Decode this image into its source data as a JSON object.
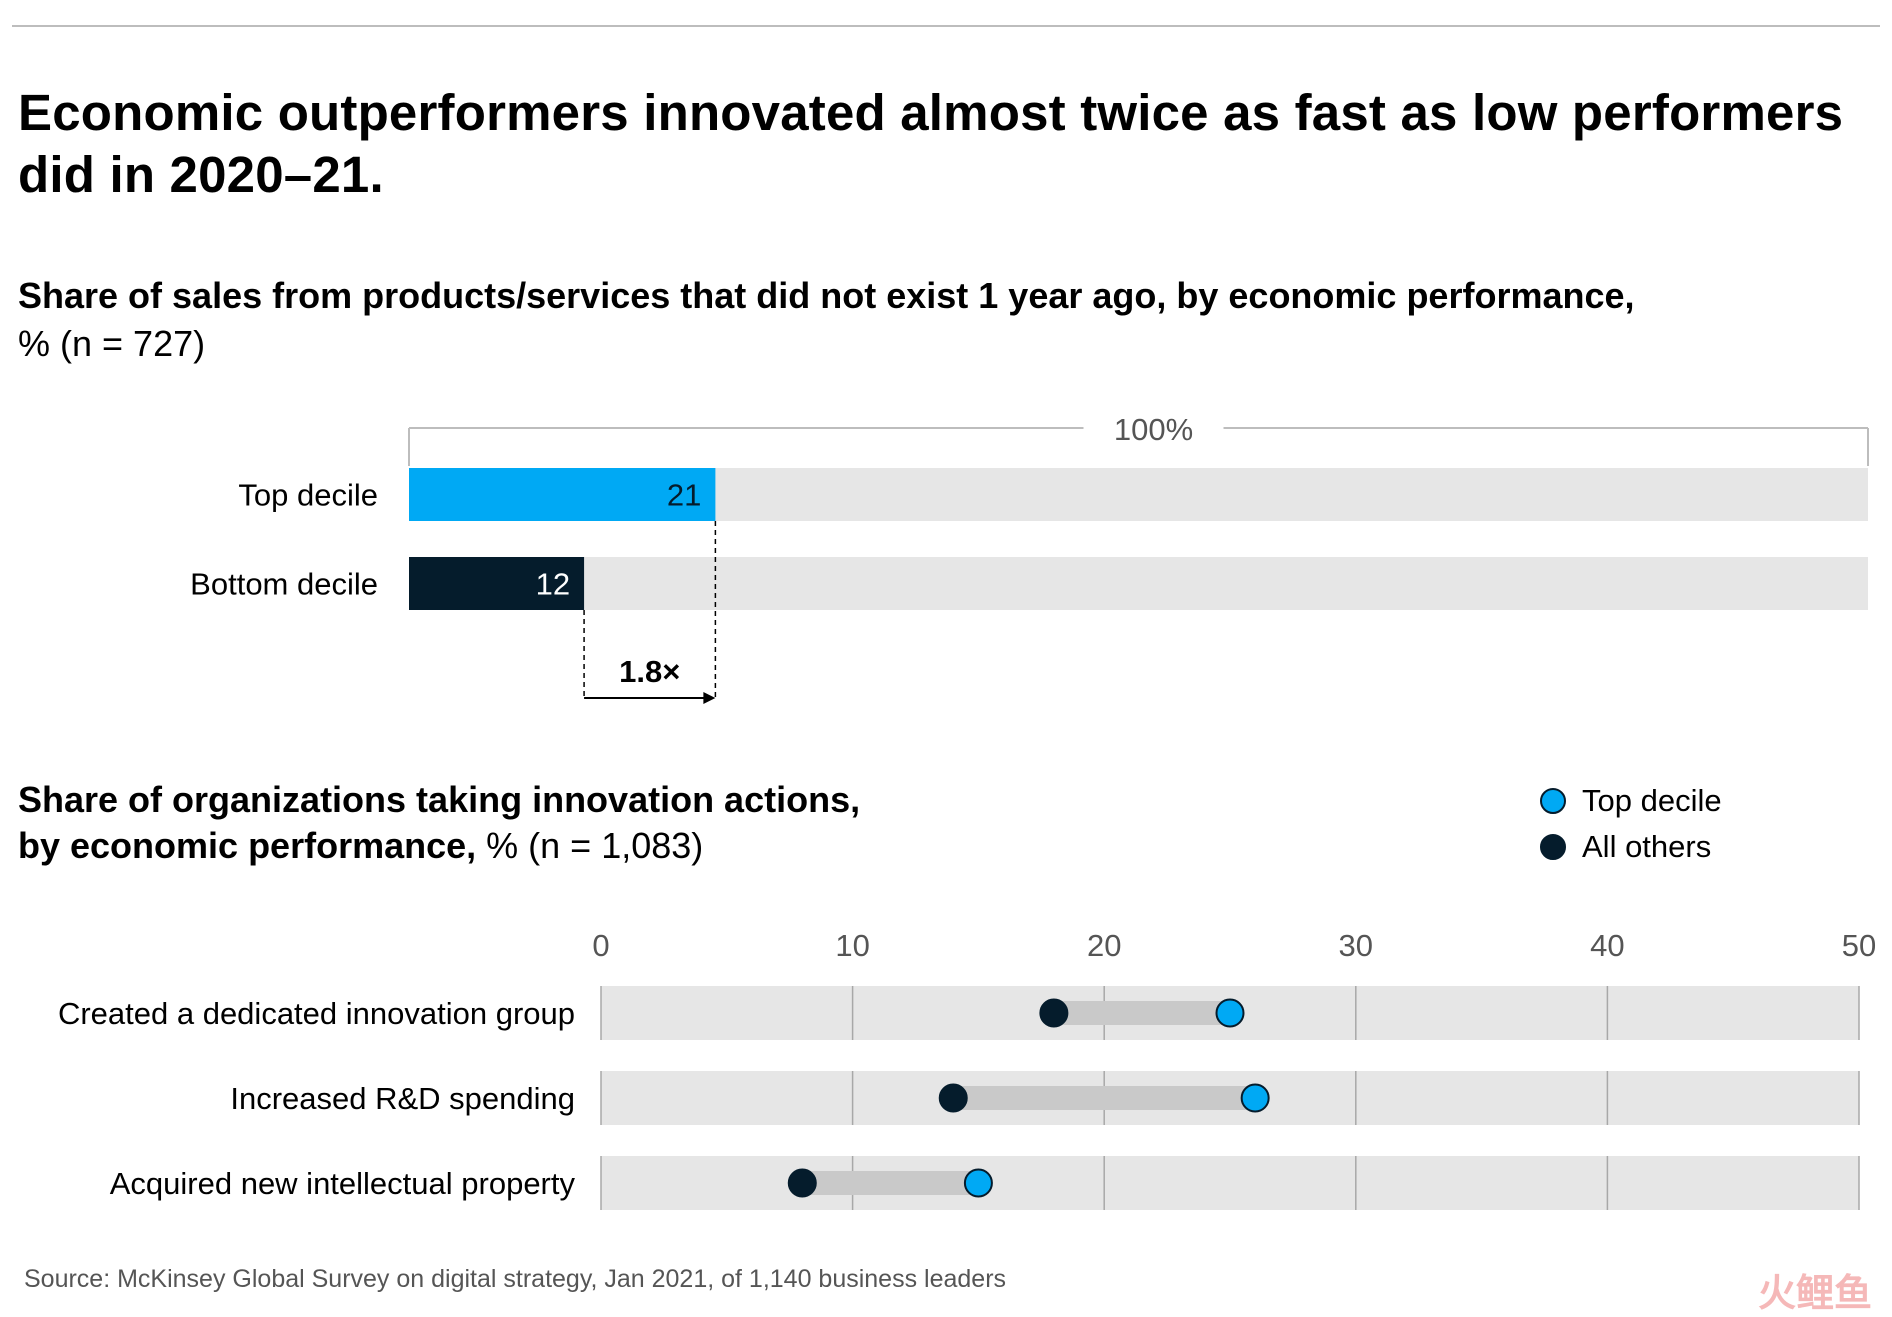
{
  "title": "Economic outperformers innovated almost twice as fast as low performers did in 2020–21.",
  "chart1": {
    "subtitle_bold": "Share of sales from products/services that did not exist 1 year ago, by economic performance,",
    "subtitle_rest": "% (n = 727)"
  },
  "chart2": {
    "subtitle_bold_1": "Share of organizations taking innovation actions,",
    "subtitle_bold_2": "by economic performance,",
    "subtitle_rest": "% (n = 1,083)",
    "legend": [
      {
        "label": "Top decile",
        "color": "#00a9f4"
      },
      {
        "label": "All others",
        "color": "#051c2c"
      }
    ]
  },
  "chart_data": [
    {
      "type": "bar",
      "orientation": "horizontal",
      "categories": [
        "Top decile",
        "Bottom decile"
      ],
      "values": [
        21,
        12
      ],
      "colors": [
        "#00a9f4",
        "#051c2c"
      ],
      "xlim": [
        0,
        100
      ],
      "scale_label": "100%",
      "annotation": "1.8×"
    },
    {
      "type": "scatter",
      "subtype": "dumbbell",
      "categories": [
        "Created a dedicated innovation group",
        "Increased R&D spending",
        "Acquired new intellectual property"
      ],
      "series": [
        {
          "name": "All others",
          "values": [
            18,
            14,
            8
          ],
          "color": "#051c2c"
        },
        {
          "name": "Top decile",
          "values": [
            25,
            26,
            15
          ],
          "color": "#00a9f4"
        }
      ],
      "xlim": [
        0,
        50
      ],
      "xticks": [
        "0",
        "10",
        "20",
        "30",
        "40",
        "50"
      ],
      "grid": true
    }
  ],
  "source": "Source: McKinsey Global Survey on digital strategy, Jan 2021, of 1,140 business leaders",
  "watermark": "火鲤鱼"
}
